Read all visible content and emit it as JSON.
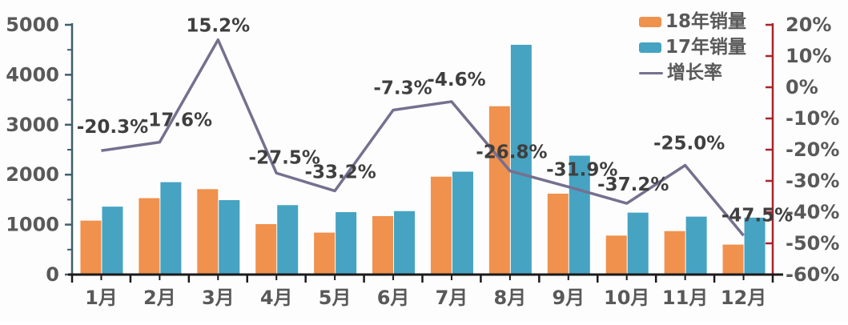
{
  "chart_data": {
    "type": "bar",
    "subtype": "grouped-bars-with-line-combo",
    "title": "",
    "categories": [
      "1月",
      "2月",
      "3月",
      "4月",
      "5月",
      "6月",
      "7月",
      "8月",
      "9月",
      "10月",
      "11月",
      "12月"
    ],
    "series": [
      {
        "name": "18年销量",
        "type": "bar",
        "axis": "left",
        "color": "#F0914D",
        "values": [
          1080,
          1530,
          1710,
          1010,
          840,
          1170,
          1960,
          3370,
          1620,
          780,
          870,
          600
        ]
      },
      {
        "name": "17年销量",
        "type": "bar",
        "axis": "left",
        "color": "#46A3C2",
        "values": [
          1360,
          1850,
          1490,
          1390,
          1250,
          1270,
          2060,
          4600,
          2380,
          1240,
          1160,
          1140
        ]
      },
      {
        "name": "增长率",
        "type": "line",
        "axis": "right",
        "color": "#76708F",
        "values": [
          -20.3,
          -17.6,
          15.2,
          -27.5,
          -33.2,
          -7.3,
          -4.6,
          -26.8,
          -31.9,
          -37.2,
          -25.0,
          -47.5
        ],
        "point_labels": [
          "-20.3%",
          "-17.6%",
          "15.2%",
          "-27.5%",
          "-33.2%",
          "-7.3%",
          "-4.6%",
          "-26.8%",
          "-31.9%",
          "-37.2%",
          "-25.0%",
          "-47.5%"
        ]
      }
    ],
    "left_axis": {
      "min": 0,
      "max": 5000,
      "major_step": 1000,
      "minor_step": 500,
      "tick_labels": [
        "0",
        "1000",
        "2000",
        "3000",
        "4000",
        "5000"
      ],
      "line_color": "#3E5F6B",
      "label_color": "#595959"
    },
    "right_axis": {
      "min": -60,
      "max": 20,
      "major_step": 10,
      "tick_labels": [
        "20%",
        "10%",
        "0%",
        "-10%",
        "-20%",
        "-30%",
        "-40%",
        "-50%",
        "-60%"
      ],
      "line_color": "#A8242C",
      "label_color": "#595959"
    },
    "x_axis": {
      "line_color": "#1A1A1A",
      "label_color": "#595959"
    },
    "data_label_color": "#3F3F3F",
    "grid": false,
    "legend": {
      "position": "top-right",
      "items": [
        "18年销量",
        "17年销量",
        "增长率"
      ]
    }
  }
}
